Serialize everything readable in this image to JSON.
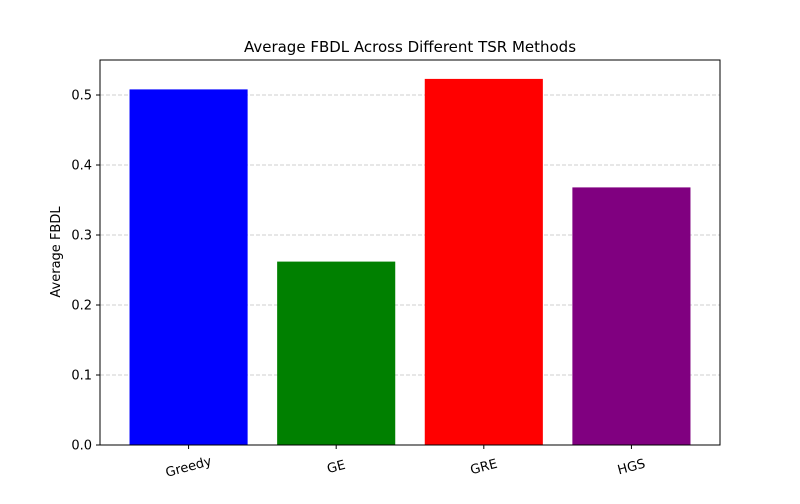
{
  "chart_data": {
    "type": "bar",
    "title": "Average FBDL Across Different TSR Methods",
    "xlabel": "",
    "ylabel": "Average FBDL",
    "categories": [
      "Greedy",
      "GE",
      "GRE",
      "HGS"
    ],
    "values": [
      0.508,
      0.262,
      0.523,
      0.368
    ],
    "colors": [
      "#0000ff",
      "#008000",
      "#ff0000",
      "#800080"
    ],
    "ylim": [
      0,
      0.55
    ],
    "yticks": [
      0.0,
      0.1,
      0.2,
      0.3,
      0.4,
      0.5
    ],
    "ytick_labels": [
      "0.0",
      "0.1",
      "0.2",
      "0.3",
      "0.4",
      "0.5"
    ],
    "grid": "y-dashed",
    "legend": "none",
    "xtick_rotation": "rotated"
  }
}
